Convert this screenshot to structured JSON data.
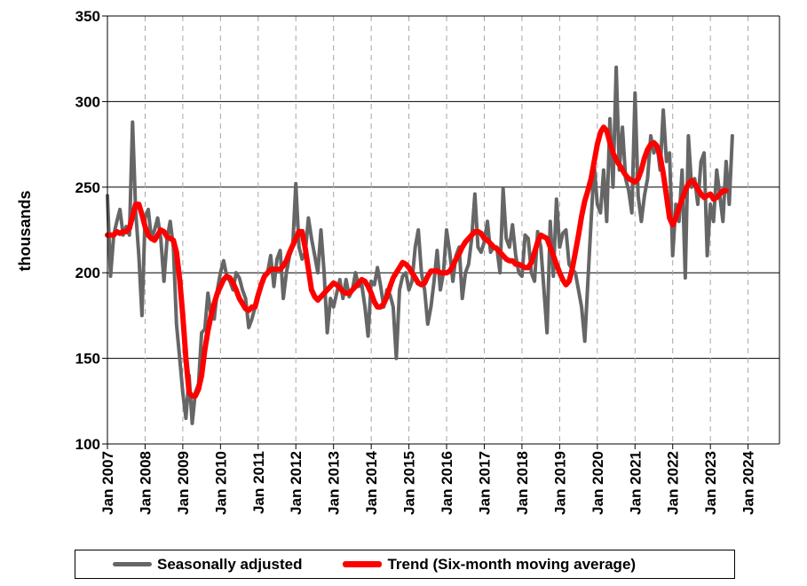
{
  "chart_data": {
    "type": "line",
    "title": "",
    "xlabel": "",
    "ylabel": "thousands",
    "ylim": [
      100,
      350
    ],
    "yticks": [
      100,
      150,
      200,
      250,
      300,
      350
    ],
    "xticks": [
      "Jan 2007",
      "Jan 2008",
      "Jan 2009",
      "Jan 2010",
      "Jan 2011",
      "Jan 2012",
      "Jan 2013",
      "Jan 2014",
      "Jan 2015",
      "Jan 2016",
      "Jan 2017",
      "Jan 2018",
      "Jan 2019",
      "Jan 2020",
      "Jan 2021",
      "Jan 2022",
      "Jan 2023",
      "Jan 2024"
    ],
    "xrange": [
      "2007-01",
      "2024-11"
    ],
    "grid": {
      "horizontal": true,
      "vertical_dashed": true
    },
    "legend_position": "bottom",
    "colors": {
      "seasonally_adjusted": "#666666",
      "trend": "#ff0000"
    },
    "series": [
      {
        "name": "Seasonally adjusted",
        "start": "2007-01",
        "values": [
          245,
          198,
          222,
          230,
          237,
          222,
          227,
          222,
          288,
          236,
          210,
          175,
          232,
          237,
          220,
          225,
          232,
          220,
          195,
          220,
          230,
          215,
          170,
          150,
          130,
          115,
          140,
          112,
          130,
          135,
          165,
          167,
          188,
          175,
          173,
          190,
          200,
          207,
          198,
          195,
          190,
          200,
          197,
          190,
          185,
          168,
          173,
          180,
          187,
          192,
          197,
          200,
          210,
          192,
          208,
          213,
          185,
          200,
          210,
          215,
          252,
          215,
          208,
          212,
          232,
          220,
          210,
          200,
          225,
          200,
          165,
          185,
          180,
          188,
          196,
          185,
          196,
          186,
          190,
          200,
          192,
          193,
          180,
          163,
          195,
          193,
          203,
          192,
          180,
          190,
          187,
          180,
          150,
          190,
          198,
          200,
          190,
          195,
          215,
          225,
          200,
          190,
          170,
          180,
          195,
          213,
          190,
          200,
          225,
          212,
          195,
          210,
          215,
          185,
          200,
          205,
          220,
          246,
          215,
          212,
          218,
          230,
          212,
          215,
          215,
          200,
          249,
          220,
          215,
          228,
          210,
          200,
          198,
          222,
          220,
          200,
          195,
          224,
          215,
          190,
          165,
          230,
          198,
          243,
          215,
          223,
          225,
          205,
          202,
          200,
          190,
          180,
          160,
          195,
          230,
          263,
          240,
          235,
          260,
          230,
          290,
          250,
          320,
          260,
          285,
          255,
          248,
          235,
          305,
          245,
          230,
          245,
          255,
          280,
          270,
          275,
          260,
          295,
          265,
          270,
          210,
          240,
          230,
          260,
          197,
          280,
          250,
          255,
          240,
          265,
          270,
          210,
          240,
          230,
          260,
          245,
          230,
          265,
          240,
          280
        ]
      },
      {
        "name": "Trend (Six-month moving average)",
        "start": "2007-01",
        "values": [
          222,
          222,
          222,
          224,
          223,
          224,
          224,
          226,
          233,
          240,
          240,
          234,
          227,
          222,
          220,
          219,
          222,
          225,
          224,
          221,
          220,
          219,
          212,
          196,
          175,
          150,
          130,
          128,
          128,
          132,
          140,
          155,
          166,
          175,
          182,
          188,
          192,
          196,
          198,
          197,
          194,
          190,
          185,
          182,
          179,
          178,
          180,
          180,
          187,
          193,
          198,
          200,
          202,
          202,
          202,
          202,
          204,
          207,
          212,
          216,
          220,
          224,
          224,
          214,
          202,
          190,
          186,
          184,
          186,
          188,
          190,
          192,
          194,
          193,
          191,
          189,
          188,
          188,
          190,
          192,
          194,
          196,
          195,
          192,
          188,
          183,
          180,
          180,
          182,
          186,
          192,
          197,
          200,
          203,
          206,
          205,
          203,
          200,
          197,
          194,
          193,
          194,
          198,
          201,
          201,
          201,
          200,
          200,
          200,
          201,
          204,
          208,
          211,
          215,
          218,
          220,
          222,
          224,
          224,
          223,
          220,
          219,
          217,
          215,
          214,
          212,
          210,
          208,
          207,
          207,
          205,
          205,
          204,
          203,
          203,
          206,
          212,
          218,
          222,
          221,
          220,
          215,
          210,
          205,
          200,
          196,
          193,
          195,
          202,
          212,
          222,
          233,
          242,
          248,
          255,
          265,
          275,
          282,
          285,
          283,
          276,
          270,
          266,
          263,
          260,
          257,
          255,
          254,
          253,
          255,
          260,
          267,
          272,
          275,
          276,
          274,
          268,
          258,
          245,
          232,
          228,
          232,
          238,
          243,
          248,
          252,
          254,
          252,
          249,
          246,
          244,
          245,
          246,
          243,
          244,
          246,
          248,
          248
        ]
      }
    ]
  },
  "legend": {
    "items": [
      {
        "label": "Seasonally adjusted"
      },
      {
        "label": "Trend (Six-month moving average)"
      }
    ]
  }
}
